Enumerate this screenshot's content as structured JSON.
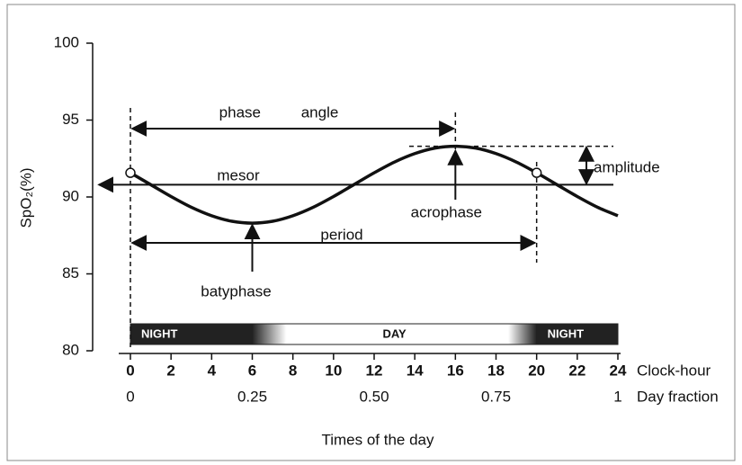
{
  "chart_data": {
    "type": "line",
    "y_label": "SpO₂(%)",
    "x_label": "Times of the day",
    "x_axis_name": "Clock-hour",
    "x2_axis_name": "Day fraction",
    "color": "#111111",
    "x": [
      0,
      1,
      2,
      3,
      4,
      5,
      6,
      7,
      8,
      9,
      10,
      11,
      12,
      13,
      14,
      15,
      16,
      17,
      18,
      19,
      20,
      21,
      22,
      23,
      24
    ],
    "values": [
      91.57,
      90.8,
      90.03,
      89.33,
      88.78,
      88.42,
      88.3,
      88.42,
      88.78,
      89.33,
      90.03,
      90.8,
      91.57,
      92.27,
      92.82,
      93.18,
      93.3,
      93.18,
      92.82,
      92.27,
      91.57,
      90.8,
      90.03,
      89.33,
      88.78
    ],
    "xlim": [
      0,
      24
    ],
    "xticks": [
      0,
      2,
      4,
      6,
      8,
      10,
      12,
      14,
      16,
      18,
      20,
      22,
      24
    ],
    "x2lim": [
      0,
      1
    ],
    "x2ticks": [
      0,
      0.25,
      {
        "value": 0.5,
        "label": "0.50"
      },
      0.75,
      1
    ],
    "ylim": [
      80,
      100
    ],
    "yticks": [
      80,
      85,
      90,
      95,
      100
    ],
    "bands": [
      {
        "label": "NIGHT",
        "from": 0,
        "to": 6
      },
      {
        "label": "DAY",
        "from": 6,
        "to": 20
      },
      {
        "label": "NIGHT",
        "from": 20,
        "to": 24
      }
    ],
    "mesor": {
      "label": "mesor",
      "value": 90.8
    },
    "amplitude": {
      "label": "amplitude",
      "value": 93.3
    },
    "acrophase": {
      "label": "acrophase",
      "x": 16
    },
    "batyphase": {
      "label": "batyphase",
      "x": 6
    },
    "period": {
      "label": "period",
      "from": 0,
      "to": 20
    },
    "phase_angle": {
      "label": "phase angle",
      "from": 0,
      "to": 16
    }
  }
}
